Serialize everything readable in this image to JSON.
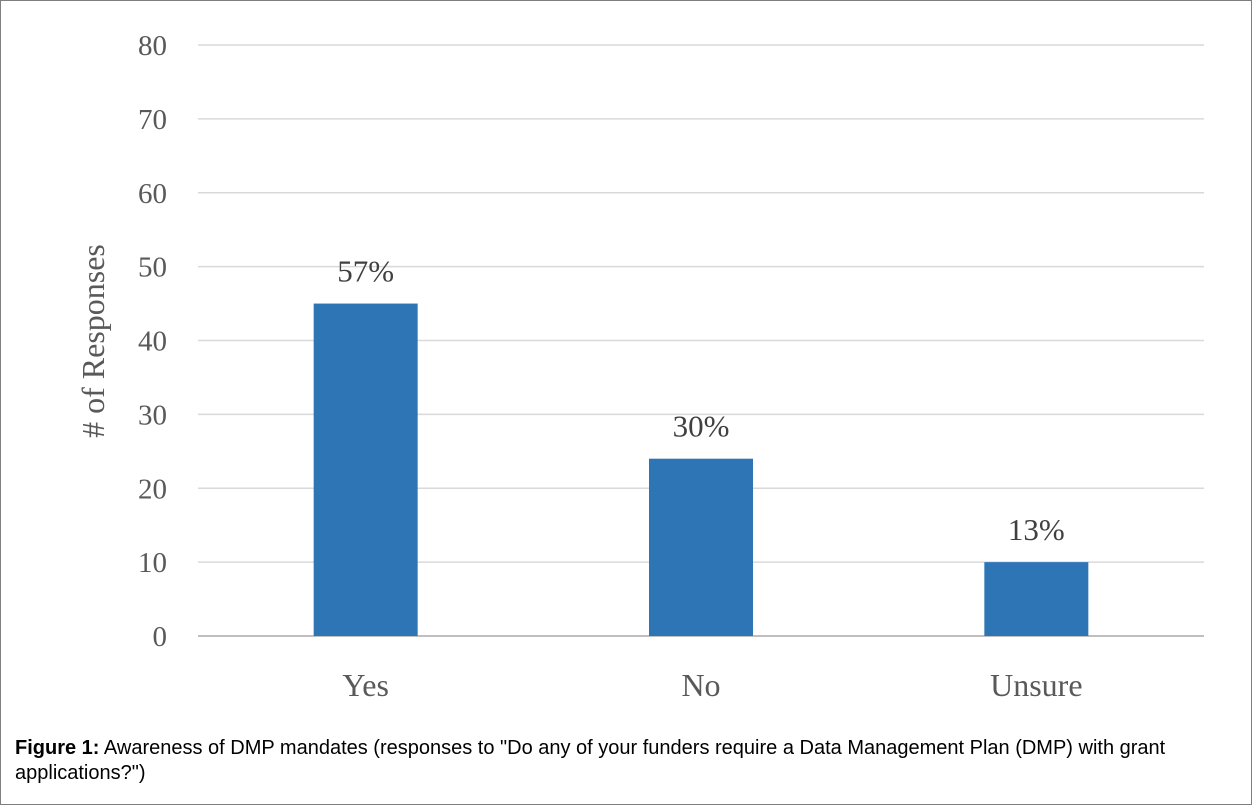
{
  "chart_data": {
    "type": "bar",
    "title": "",
    "xlabel": "",
    "ylabel": "# of Responses",
    "categories": [
      "Yes",
      "No",
      "Unsure"
    ],
    "values": [
      45,
      24,
      10
    ],
    "data_labels": [
      "57%",
      "30%",
      "13%"
    ],
    "ylim": [
      0,
      80
    ],
    "yticks": [
      0,
      10,
      20,
      30,
      40,
      50,
      60,
      70,
      80
    ],
    "grid": true,
    "legend": "none",
    "colors": {
      "bar": "#2e75b6",
      "grid": "#d9d9d9",
      "axis": "#bfbfbf"
    }
  },
  "caption": {
    "label": "Figure 1:",
    "text": " Awareness of DMP mandates (responses to \"Do any of your funders require a Data Management Plan (DMP) with grant applications?\")"
  }
}
